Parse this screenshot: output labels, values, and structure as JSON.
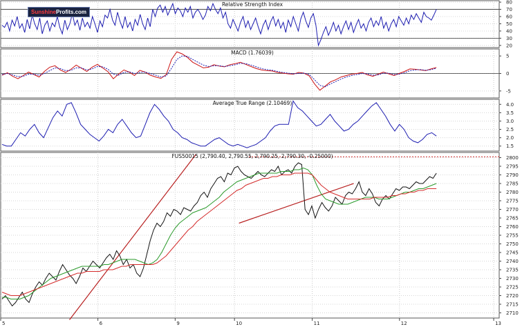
{
  "logo": {
    "brand": "Sunshine",
    "site": "Profits.com"
  },
  "chart_data": [
    {
      "type": "line",
      "title": "Relative Strength Index",
      "y_ticks": [
        "80",
        "70",
        "60",
        "50",
        "40",
        "30",
        "20"
      ],
      "ylim": [
        17,
        82
      ],
      "reference_lines": [
        70,
        30
      ],
      "series": [
        {
          "name": "RSI",
          "color": "#1c1cb0",
          "values": [
            48,
            45,
            52,
            40,
            55,
            47,
            60,
            44,
            50,
            38,
            56,
            43,
            62,
            50,
            42,
            58,
            36,
            48,
            54,
            40,
            51,
            46,
            60,
            45,
            36,
            55,
            42,
            50,
            64,
            48,
            55,
            41,
            58,
            46,
            52,
            44,
            60,
            50,
            38,
            54,
            46,
            62,
            58,
            70,
            55,
            48,
            66,
            53,
            44,
            60,
            45,
            52,
            40,
            56,
            48,
            63,
            50,
            42,
            58,
            46,
            70,
            60,
            72,
            76,
            66,
            74,
            62,
            70,
            78,
            64,
            72,
            68,
            60,
            72,
            66,
            74,
            58,
            66,
            70,
            64,
            56,
            62,
            74,
            68,
            78,
            70,
            64,
            72,
            58,
            66,
            50,
            44,
            56,
            48,
            40,
            52,
            60,
            45,
            54,
            42,
            50,
            58,
            46,
            36,
            48,
            55,
            42,
            53,
            60,
            47,
            56,
            44,
            52,
            38,
            55,
            46,
            60,
            50,
            40,
            57,
            66,
            54,
            45,
            58,
            64,
            48,
            20,
            28,
            38,
            46,
            34,
            42,
            52,
            40,
            48,
            36,
            46,
            54,
            42,
            52,
            38,
            48,
            56,
            44,
            50,
            40,
            52,
            58,
            46,
            54,
            48,
            60,
            44,
            52,
            40,
            50,
            56,
            46,
            60,
            54,
            48,
            58,
            50,
            62,
            56,
            64,
            58,
            52,
            66,
            60,
            58,
            55,
            62,
            70
          ]
        }
      ]
    },
    {
      "type": "line",
      "title": "MACD (1.76039)",
      "y_ticks": [
        "5",
        "0",
        "-5"
      ],
      "ylim": [
        -7,
        7
      ],
      "series": [
        {
          "name": "MACD",
          "color": "#cc1111",
          "values": [
            -0.5,
            0.2,
            -0.8,
            -1.5,
            -0.6,
            0.4,
            -0.3,
            -1.0,
            0.6,
            1.8,
            2.2,
            1.0,
            0.3,
            1.2,
            2.4,
            1.5,
            0.6,
            1.8,
            2.6,
            1.6,
            0.5,
            -1.5,
            -0.2,
            1.0,
            0.4,
            -0.6,
            0.9,
            0.4,
            -0.5,
            -1.0,
            -1.4,
            -0.3,
            4.0,
            6.2,
            5.6,
            4.6,
            3.2,
            2.4,
            1.6,
            1.8,
            2.5,
            2.1,
            1.9,
            2.5,
            2.8,
            3.2,
            2.6,
            2.0,
            1.4,
            1.0,
            0.8,
            0.7,
            0.3,
            0.1,
            -0.1,
            -0.2,
            0.3,
            0.1,
            -0.7,
            -3.0,
            -4.8,
            -3.6,
            -2.4,
            -1.8,
            -1.0,
            -0.6,
            -0.2,
            0.0,
            0.3,
            -0.4,
            -0.8,
            -0.2,
            0.4,
            -0.1,
            -0.6,
            0.0,
            0.6,
            1.3,
            1.2,
            1.0,
            0.8,
            1.3,
            1.7
          ]
        },
        {
          "name": "Signal",
          "color": "#1c1cb0",
          "values": [
            -0.3,
            0.0,
            -0.4,
            -0.9,
            -0.8,
            -0.2,
            -0.2,
            -0.5,
            0.0,
            0.8,
            1.6,
            1.4,
            0.8,
            0.9,
            1.6,
            1.6,
            1.0,
            1.3,
            2.0,
            1.9,
            1.2,
            -0.2,
            -0.5,
            0.3,
            0.5,
            0.0,
            0.3,
            0.4,
            0.0,
            -0.5,
            -1.0,
            -0.7,
            1.5,
            4.0,
            5.0,
            4.9,
            4.0,
            3.2,
            2.4,
            2.0,
            2.2,
            2.2,
            2.0,
            2.2,
            2.5,
            2.9,
            2.8,
            2.4,
            1.9,
            1.4,
            1.1,
            0.9,
            0.6,
            0.3,
            0.1,
            -0.1,
            0.0,
            0.1,
            -0.3,
            -1.8,
            -3.4,
            -3.8,
            -3.0,
            -2.3,
            -1.6,
            -1.0,
            -0.6,
            -0.3,
            0.0,
            -0.1,
            -0.5,
            -0.4,
            0.1,
            0.1,
            -0.3,
            -0.2,
            0.2,
            0.8,
            1.0,
            1.1,
            0.9,
            1.1,
            1.5
          ]
        }
      ]
    },
    {
      "type": "line",
      "title": "Average True Range (2.10469)",
      "y_ticks": [
        "4.0",
        "3.5",
        "3.0",
        "2.5",
        "2.0",
        "1.5"
      ],
      "ylim": [
        1.2,
        4.3
      ],
      "series": [
        {
          "name": "ATR",
          "color": "#1c1cb0",
          "values": [
            1.6,
            1.5,
            1.5,
            1.9,
            2.3,
            2.1,
            2.5,
            2.8,
            2.3,
            2.0,
            2.6,
            3.2,
            3.6,
            3.3,
            4.0,
            4.1,
            3.5,
            2.8,
            2.5,
            2.2,
            2.0,
            1.8,
            2.1,
            2.5,
            2.3,
            2.8,
            3.1,
            2.7,
            2.3,
            2.0,
            2.1,
            2.8,
            3.5,
            4.0,
            3.7,
            3.3,
            3.0,
            2.5,
            2.3,
            2.0,
            1.9,
            1.7,
            1.6,
            1.5,
            1.5,
            1.7,
            1.9,
            2.0,
            1.8,
            1.6,
            1.5,
            1.6,
            1.5,
            1.4,
            1.5,
            1.6,
            1.8,
            2.0,
            2.4,
            2.7,
            2.8,
            2.8,
            2.8,
            4.2,
            3.8,
            3.6,
            3.3,
            3.0,
            2.7,
            2.8,
            3.1,
            3.4,
            3.0,
            2.7,
            2.4,
            2.5,
            2.8,
            3.0,
            3.3,
            3.6,
            3.9,
            4.1,
            3.7,
            3.3,
            2.8,
            2.4,
            2.8,
            2.5,
            2.0,
            1.8,
            1.7,
            1.9,
            2.2,
            2.3,
            2.1
          ]
        }
      ]
    },
    {
      "type": "line",
      "title": "FUS50015 (2,790.40, 2,790.55, 2,790.25, 2,790.30, -0.25000)",
      "y_ticks": [
        "2800",
        "2795",
        "2790",
        "2785",
        "2780",
        "2775",
        "2770",
        "2765",
        "2760",
        "2755",
        "2750",
        "2745",
        "2740",
        "2735",
        "2730",
        "2725",
        "2720",
        "2715",
        "2710"
      ],
      "ylim": [
        2707,
        2803
      ],
      "x_ticks": [
        "5",
        "6",
        "9",
        "10",
        "11",
        "12",
        "13"
      ],
      "reference_lines": [
        2800.5
      ],
      "trendlines": [
        {
          "color": "#b82020",
          "from": [
            0.138,
            2706
          ],
          "to": [
            0.392,
            2802
          ]
        },
        {
          "color": "#b82020",
          "from": [
            0.478,
            2762
          ],
          "to": [
            0.708,
            2785
          ]
        }
      ],
      "series": [
        {
          "name": "Price",
          "color": "#111111",
          "values": [
            2718,
            2720,
            2717,
            2714,
            2716,
            2719,
            2722,
            2718,
            2716,
            2721,
            2725,
            2728,
            2726,
            2730,
            2733,
            2731,
            2729,
            2734,
            2738,
            2735,
            2732,
            2730,
            2727,
            2731,
            2736,
            2734,
            2737,
            2740,
            2738,
            2736,
            2739,
            2742,
            2744,
            2741,
            2746,
            2743,
            2738,
            2741,
            2736,
            2738,
            2733,
            2731,
            2736,
            2744,
            2752,
            2758,
            2762,
            2760,
            2763,
            2768,
            2766,
            2770,
            2769,
            2767,
            2771,
            2770,
            2769,
            2772,
            2774,
            2778,
            2780,
            2777,
            2782,
            2785,
            2788,
            2789,
            2786,
            2791,
            2790,
            2794,
            2795,
            2792,
            2790,
            2789,
            2788,
            2790,
            2792,
            2790,
            2789,
            2791,
            2793,
            2792,
            2795,
            2790,
            2792,
            2793,
            2791,
            2795,
            2797,
            2796,
            2770,
            2767,
            2772,
            2765,
            2770,
            2774,
            2771,
            2769,
            2772,
            2777,
            2775,
            2773,
            2778,
            2780,
            2779,
            2782,
            2786,
            2780,
            2778,
            2782,
            2779,
            2774,
            2772,
            2776,
            2778,
            2776,
            2779,
            2782,
            2781,
            2783,
            2783,
            2782,
            2784,
            2786,
            2785,
            2785,
            2787,
            2789,
            2788,
            2791
          ]
        },
        {
          "name": "MA short",
          "color": "#2a9a2a",
          "values": [
            2719,
            2719,
            2718,
            2718,
            2718,
            2719,
            2720,
            2722,
            2724,
            2726,
            2728,
            2730,
            2731,
            2732,
            2733,
            2734,
            2735,
            2736,
            2737,
            2737,
            2737,
            2737,
            2737,
            2738,
            2738,
            2739,
            2740,
            2741,
            2741,
            2741,
            2741,
            2740,
            2739,
            2738,
            2739,
            2741,
            2745,
            2750,
            2755,
            2759,
            2762,
            2764,
            2766,
            2768,
            2769,
            2770,
            2771,
            2773,
            2775,
            2777,
            2780,
            2782,
            2784,
            2786,
            2787,
            2788,
            2789,
            2790,
            2791,
            2791,
            2791,
            2791,
            2791,
            2792,
            2792,
            2792,
            2793,
            2793,
            2794,
            2793,
            2790,
            2784,
            2779,
            2776,
            2775,
            2774,
            2773,
            2773,
            2773,
            2774,
            2775,
            2776,
            2777,
            2777,
            2777,
            2776,
            2776,
            2776,
            2777,
            2778,
            2779,
            2780,
            2780,
            2781,
            2782,
            2782,
            2783,
            2784,
            2785
          ]
        },
        {
          "name": "MA long",
          "color": "#d42a2a",
          "values": [
            2722,
            2721,
            2720,
            2720,
            2720,
            2721,
            2722,
            2723,
            2724,
            2725,
            2726,
            2727,
            2728,
            2729,
            2730,
            2731,
            2732,
            2733,
            2733,
            2734,
            2734,
            2734,
            2734,
            2735,
            2735,
            2735,
            2736,
            2737,
            2737,
            2738,
            2738,
            2738,
            2738,
            2738,
            2738,
            2739,
            2741,
            2743,
            2746,
            2749,
            2752,
            2755,
            2758,
            2760,
            2763,
            2765,
            2767,
            2769,
            2771,
            2773,
            2775,
            2777,
            2779,
            2781,
            2782,
            2784,
            2785,
            2786,
            2787,
            2788,
            2788,
            2789,
            2789,
            2790,
            2790,
            2790,
            2791,
            2791,
            2791,
            2791,
            2790,
            2787,
            2784,
            2782,
            2780,
            2779,
            2778,
            2777,
            2776,
            2776,
            2776,
            2776,
            2776,
            2776,
            2777,
            2777,
            2777,
            2777,
            2778,
            2778,
            2779,
            2779,
            2780,
            2780,
            2781,
            2781,
            2782,
            2782,
            2782
          ]
        }
      ]
    }
  ]
}
